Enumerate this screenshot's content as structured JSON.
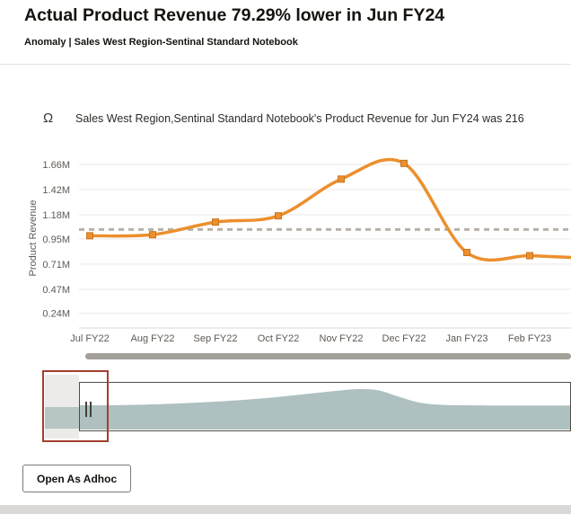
{
  "header": {
    "title": "Actual Product Revenue 79.29% lower in Jun FY24",
    "subtitle": "Anomaly | Sales West Region-Sentinal Standard Notebook"
  },
  "insight": {
    "icon_glyph": "Ω",
    "text": "Sales West Region,Sentinal Standard Notebook's Product Revenue for Jun FY24 was 216"
  },
  "chart_data": {
    "type": "line",
    "title": "",
    "xlabel": "",
    "ylabel": "Product Revenue",
    "categories": [
      "Jul FY22",
      "Aug FY22",
      "Sep FY22",
      "Oct FY22",
      "Nov FY22",
      "Dec FY22",
      "Jan FY23",
      "Feb FY23"
    ],
    "values": [
      0.98,
      0.99,
      1.11,
      1.17,
      1.52,
      1.67,
      0.82,
      0.79
    ],
    "unit": "M",
    "y_ticks": [
      1.66,
      1.42,
      1.18,
      0.95,
      0.71,
      0.47,
      0.24
    ],
    "y_tick_labels": [
      "1.66M",
      "1.42M",
      "1.18M",
      "0.95M",
      "0.71M",
      "0.47M",
      "0.24M"
    ],
    "baseline": 1.04,
    "baseline_style": "dashed",
    "marker": "square",
    "grid": true,
    "legend": "none",
    "line_color": "#EC8F2E",
    "marker_edge_color": "#C9741F",
    "navigator_profile": [
      [
        0,
        0.14
      ],
      [
        0.06,
        0.14
      ],
      [
        0.12,
        0.17
      ],
      [
        0.2,
        0.24
      ],
      [
        0.28,
        0.34
      ],
      [
        0.36,
        0.48
      ],
      [
        0.44,
        0.68
      ],
      [
        0.52,
        0.9
      ],
      [
        0.57,
        1.0
      ],
      [
        0.61,
        0.93
      ],
      [
        0.65,
        0.6
      ],
      [
        0.69,
        0.3
      ],
      [
        0.73,
        0.18
      ],
      [
        0.78,
        0.14
      ],
      [
        0.85,
        0.13
      ],
      [
        1,
        0.13
      ]
    ]
  },
  "navigator": {
    "handle": "drag-handle"
  },
  "footer": {
    "open_as_adhoc_label": "Open As Adhoc"
  },
  "colors": {
    "accent_orange": "#EC8F2E",
    "baseline_gray": "#B7B1A8",
    "navigator_fill": "#AEC0C0",
    "highlight_red": "#A23F2F",
    "scrollbar_gray": "#A39F99"
  }
}
